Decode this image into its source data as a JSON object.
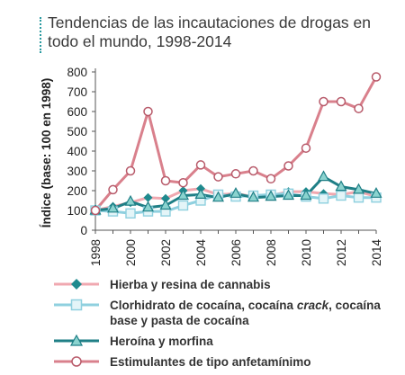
{
  "title": "Tendencias de las incautaciones de drogas en todo el mundo, 1998-2014",
  "chart_data": {
    "type": "line",
    "title": "Tendencias de las incautaciones de drogas en todo el mundo, 1998-2014",
    "ylabel": "Índice (base: 100 en 1998)",
    "xlabel": "",
    "x": [
      1998,
      1999,
      2000,
      2001,
      2002,
      2003,
      2004,
      2005,
      2006,
      2007,
      2008,
      2009,
      2010,
      2011,
      2012,
      2013,
      2014
    ],
    "x_tick_labels": [
      "1998",
      "2000",
      "2002",
      "2004",
      "2006",
      "2008",
      "2010",
      "2012",
      "2014"
    ],
    "y_tick_labels": [
      "0",
      "100",
      "200",
      "300",
      "400",
      "500",
      "600",
      "700",
      "800"
    ],
    "ylim": [
      0,
      800
    ],
    "grid": false,
    "legend_position": "bottom",
    "series": [
      {
        "name": "Hierba y resina de cannabis",
        "color": "#f0a8b0",
        "marker_color": "#1f8a8e",
        "marker": "diamond",
        "values": [
          100,
          120,
          140,
          165,
          160,
          200,
          210,
          180,
          185,
          170,
          175,
          195,
          195,
          185,
          180,
          195,
          170
        ]
      },
      {
        "name": "Clorhidrato de cocaína, cocaína crack, cocaína base y pasta de cocaína",
        "name_parts": [
          "Clorhidrato de cocaína, cocaína ",
          "crack",
          ", cocaína base y pasta de cocaína"
        ],
        "color": "#8fd0df",
        "marker_color": "#c9ecf2",
        "marker": "square",
        "values": [
          100,
          95,
          85,
          95,
          95,
          125,
          150,
          180,
          170,
          175,
          180,
          185,
          170,
          160,
          175,
          165,
          165
        ]
      },
      {
        "name": "Heroína y morfina",
        "color": "#1f7f86",
        "marker_color": "#8ad3cf",
        "marker": "triangle",
        "values": [
          100,
          110,
          145,
          115,
          125,
          175,
          180,
          165,
          185,
          165,
          170,
          175,
          175,
          270,
          220,
          205,
          185
        ]
      },
      {
        "name": "Estimulantes de tipo anfetamínimo",
        "color": "#d9808c",
        "marker_color": "#ffffff",
        "marker": "circle",
        "values": [
          100,
          205,
          300,
          600,
          250,
          240,
          330,
          270,
          285,
          300,
          260,
          325,
          415,
          650,
          650,
          615,
          775
        ]
      }
    ]
  }
}
